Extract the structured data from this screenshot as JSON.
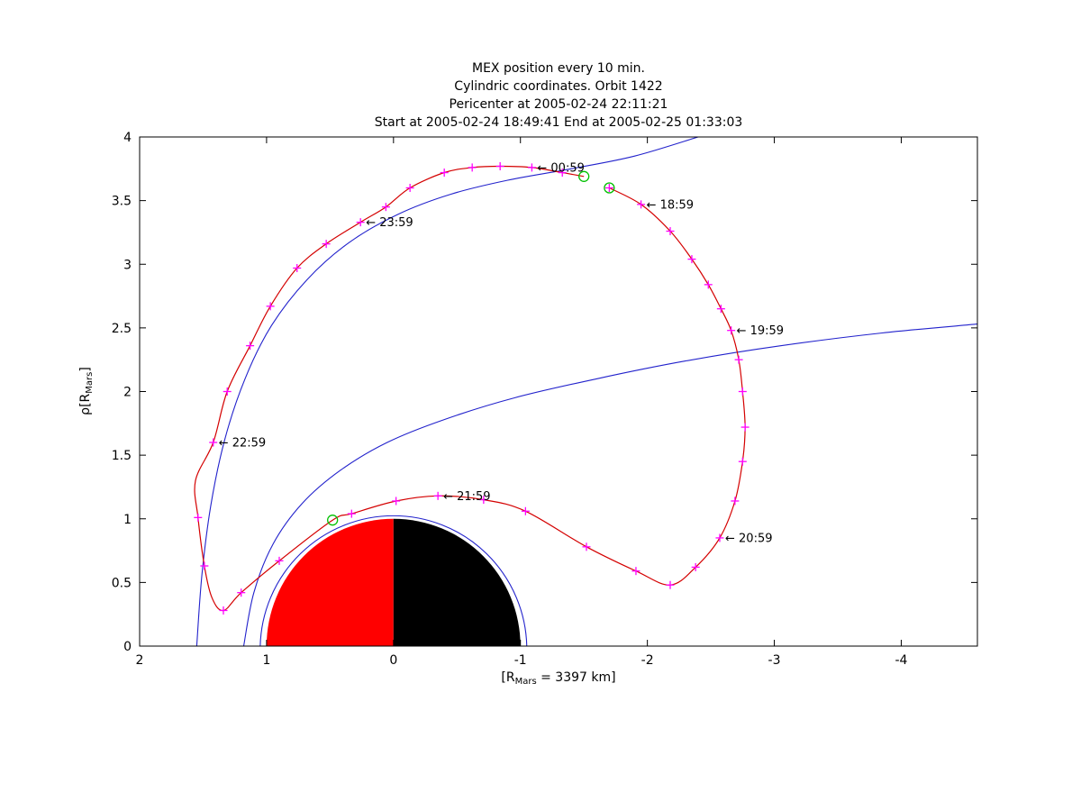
{
  "titles": [
    "MEX position every 10 min.",
    "Cylindric coordinates. Orbit 1422",
    "Pericenter at 2005-02-24 22:11:21",
    "Start at 2005-02-24 18:49:41 End at 2005-02-25 01:33:03"
  ],
  "axis": {
    "ylabel_pre": "ρ[R",
    "ylabel_sub": "Mars",
    "ylabel_post": "]",
    "xlabel_pre": "[R",
    "xlabel_sub": "Mars",
    "xlabel_post": " = 3397 km]"
  },
  "chart_data": {
    "type": "line",
    "title": "MEX position every 10 min. Cylindric coordinates. Orbit 1422",
    "subtitle": "Pericenter at 2005-02-24 22:11:21. Start at 2005-02-24 18:49:41 End at 2005-02-25 01:33:03",
    "xlabel": "[R_Mars = 3397 km]",
    "ylabel": "rho [R_Mars]",
    "xlim": [
      2,
      -4.6
    ],
    "ylim": [
      0,
      4
    ],
    "x_axis_direction": "reversed",
    "grid": false,
    "x_ticks": [
      2,
      1,
      0,
      -1,
      -2,
      -3,
      -4
    ],
    "y_ticks": [
      0,
      0.5,
      1,
      1.5,
      2,
      2.5,
      3,
      3.5,
      4
    ],
    "colors": {
      "orbit": "#d40000",
      "marker": "#ff00ff",
      "boundary": "#2222cc",
      "event": "#00c000",
      "mars_dayside": "#ff0000",
      "mars_nightside": "#000000",
      "axis": "#000000"
    },
    "mars": {
      "radius": 1.0,
      "halo_radius": 1.05
    },
    "orbit_points": [
      [
        -1.7,
        3.6,
        1
      ],
      [
        -1.95,
        3.47,
        1
      ],
      [
        -2.18,
        3.26,
        1
      ],
      [
        -2.35,
        3.04,
        1
      ],
      [
        -2.48,
        2.84,
        1
      ],
      [
        -2.58,
        2.65,
        1
      ],
      [
        -2.66,
        2.48,
        1
      ],
      [
        -2.72,
        2.25,
        1
      ],
      [
        -2.75,
        2.0,
        1
      ],
      [
        -2.77,
        1.72,
        1
      ],
      [
        -2.75,
        1.45,
        1
      ],
      [
        -2.69,
        1.14,
        1
      ],
      [
        -2.57,
        0.85,
        1
      ],
      [
        -2.38,
        0.62,
        1
      ],
      [
        -2.18,
        0.48,
        1
      ],
      [
        -1.91,
        0.59,
        1
      ],
      [
        -1.52,
        0.78,
        1
      ],
      [
        -1.04,
        1.06,
        1
      ],
      [
        -0.71,
        1.15,
        1
      ],
      [
        -0.35,
        1.18,
        1
      ],
      [
        -0.02,
        1.14,
        1
      ],
      [
        0.33,
        1.04,
        1
      ],
      [
        0.48,
        0.99,
        0
      ],
      [
        0.9,
        0.67,
        1
      ],
      [
        1.2,
        0.42,
        1
      ],
      [
        1.34,
        0.28,
        1
      ],
      [
        1.43,
        0.38,
        0
      ],
      [
        1.49,
        0.63,
        1
      ],
      [
        1.54,
        1.01,
        1
      ],
      [
        1.56,
        1.3,
        0
      ],
      [
        1.42,
        1.6,
        1
      ],
      [
        1.31,
        2.0,
        1
      ],
      [
        1.13,
        2.36,
        1
      ],
      [
        0.97,
        2.67,
        1
      ],
      [
        0.76,
        2.97,
        1
      ],
      [
        0.53,
        3.16,
        1
      ],
      [
        0.26,
        3.33,
        1
      ],
      [
        0.06,
        3.45,
        1
      ],
      [
        -0.13,
        3.6,
        1
      ],
      [
        -0.4,
        3.72,
        1
      ],
      [
        -0.62,
        3.76,
        1
      ],
      [
        -0.84,
        3.77,
        1
      ],
      [
        -1.09,
        3.76,
        1
      ],
      [
        -1.33,
        3.72,
        1
      ],
      [
        -1.5,
        3.69,
        0
      ]
    ],
    "events": [
      {
        "name": "orbit-start",
        "x": -1.7,
        "r": 3.6
      },
      {
        "name": "pericenter",
        "x": 0.48,
        "r": 0.99
      },
      {
        "name": "orbit-end",
        "x": -1.5,
        "r": 3.69
      }
    ],
    "annotations": [
      {
        "label": "00:59",
        "x": -1.09,
        "r": 3.76
      },
      {
        "label": "18:59",
        "x": -1.95,
        "r": 3.47
      },
      {
        "label": "23:59",
        "x": 0.26,
        "r": 3.33
      },
      {
        "label": "19:59",
        "x": -2.66,
        "r": 2.48
      },
      {
        "label": "22:59",
        "x": 1.42,
        "r": 1.6
      },
      {
        "label": "21:59",
        "x": -0.35,
        "r": 1.18
      },
      {
        "label": "20:59",
        "x": -2.57,
        "r": 0.85
      }
    ],
    "arrow_glyph": "←",
    "boundaries": [
      {
        "name": "bow-shock-model",
        "points": [
          [
            1.55,
            0.0
          ],
          [
            1.51,
            0.55
          ],
          [
            1.44,
            1.1
          ],
          [
            1.33,
            1.62
          ],
          [
            1.17,
            2.1
          ],
          [
            0.96,
            2.52
          ],
          [
            0.68,
            2.88
          ],
          [
            0.35,
            3.17
          ],
          [
            -0.03,
            3.39
          ],
          [
            -0.45,
            3.55
          ],
          [
            -0.9,
            3.66
          ],
          [
            -1.4,
            3.75
          ],
          [
            -1.9,
            3.85
          ],
          [
            -2.4,
            4.0
          ]
        ]
      },
      {
        "name": "magnetic-pileup-boundary-model",
        "points": [
          [
            1.18,
            0.0
          ],
          [
            1.1,
            0.42
          ],
          [
            0.95,
            0.8
          ],
          [
            0.72,
            1.12
          ],
          [
            0.42,
            1.38
          ],
          [
            0.05,
            1.6
          ],
          [
            -0.4,
            1.78
          ],
          [
            -0.95,
            1.95
          ],
          [
            -1.6,
            2.1
          ],
          [
            -2.3,
            2.24
          ],
          [
            -3.05,
            2.36
          ],
          [
            -3.85,
            2.46
          ],
          [
            -4.6,
            2.53
          ]
        ]
      }
    ]
  }
}
